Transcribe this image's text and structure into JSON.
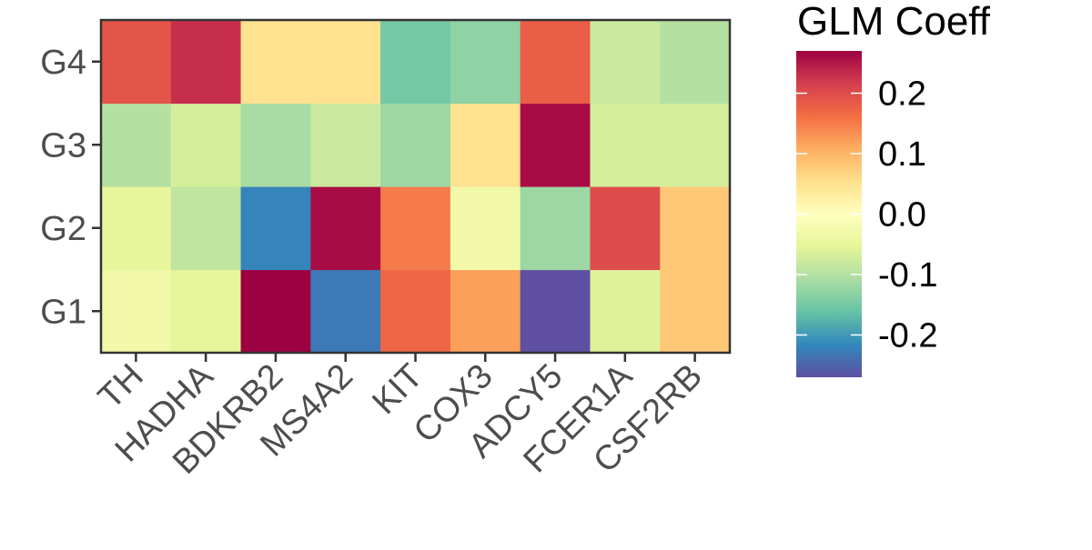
{
  "chart_data": {
    "type": "heatmap",
    "x_categories": [
      "TH",
      "HADHA",
      "BDKRB2",
      "MS4A2",
      "KIT",
      "COX3",
      "ADCY5",
      "FCER1A",
      "CSF2RB"
    ],
    "y_categories": [
      "G1",
      "G2",
      "G3",
      "G4"
    ],
    "values": {
      "G4": [
        0.19,
        0.23,
        0.05,
        0.05,
        -0.15,
        -0.13,
        0.18,
        -0.08,
        -0.1
      ],
      "G3": [
        -0.1,
        -0.07,
        -0.11,
        -0.08,
        -0.12,
        0.05,
        0.26,
        -0.07,
        -0.07
      ],
      "G2": [
        -0.05,
        -0.09,
        -0.22,
        0.26,
        0.15,
        -0.03,
        -0.12,
        0.2,
        0.08
      ],
      "G1": [
        -0.03,
        -0.05,
        0.27,
        -0.23,
        0.17,
        0.12,
        -0.27,
        -0.06,
        0.08
      ]
    },
    "legend": {
      "title": "GLM Coeff",
      "ticks": [
        0.2,
        0.1,
        0.0,
        -0.1,
        -0.2
      ],
      "tick_labels": [
        "0.2",
        "0.1",
        "0.0",
        "-0.1",
        "-0.2"
      ],
      "range": [
        -0.27,
        0.27
      ],
      "palette": "Spectral",
      "placement": "right"
    },
    "colors": {
      "panel_border": "#333333",
      "tick_label": "#4d4d4d",
      "stops": [
        "#5e4fa2",
        "#3288bd",
        "#66c2a5",
        "#abdda4",
        "#e6f598",
        "#ffffbf",
        "#fee08b",
        "#fdae61",
        "#f46d43",
        "#d53e4f",
        "#9e0142"
      ]
    }
  }
}
